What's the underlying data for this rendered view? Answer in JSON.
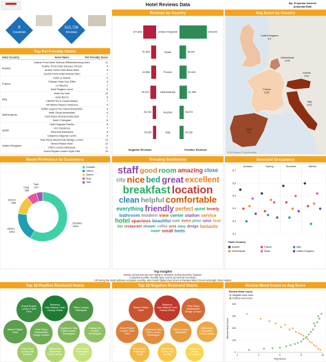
{
  "header": {
    "title": "Hotel Reviews Data",
    "authors": "By: Priyanka Ganesh",
    "authors_2": "Ankanita Rath"
  },
  "kpis": [
    {
      "value": "6",
      "label": "Countries"
    },
    {
      "value": "515,738",
      "label": "Reviews"
    }
  ],
  "pet_table": {
    "title": "Top Pet Friendly Hotels",
    "columns": [
      "Hotel Country",
      "Hotel Name",
      "Pet Friendly Score"
    ],
    "groups": [
      {
        "country": "Austria",
        "rows": [
          [
            "Austria Trend Hotel Schloss Wilhelminenberg Wien",
            11
          ],
          [
            "Austria Trend Hotel Savoyen Vienna",
            9
          ],
          [
            "Austria Trend Hotel Bosei Wien",
            8
          ],
          [
            "Austria Trend Hotel Ananas Wien",
            7
          ]
        ]
      },
      {
        "country": "France",
        "rows": [
          [
            "Hotel Le Marois",
            9
          ],
          [
            "Pullman Paris Tour Eiffel",
            8
          ],
          [
            "Le Meurice",
            7
          ],
          [
            "Hotel Regina Louvre",
            6
          ]
        ]
      },
      {
        "country": "Italy",
        "rows": [
          [
            "Hotel Da Vinci",
            10
          ],
          [
            "Hotel Berna",
            8
          ],
          [
            "UNAHOTELS Cusani Milano",
            7
          ],
          [
            "NH Milano Palazzo Moscova",
            6
          ]
        ]
      },
      {
        "country": "Netherlands",
        "rows": [
          [
            "Sofitel Legend The Grand Amsterdam",
            9
          ],
          [
            "Hotel Okura Amsterdam",
            8
          ],
          [
            "Park Plaza Victoria Amsterdam",
            7
          ],
          [
            "Hotel V Nesplein",
            6
          ]
        ]
      },
      {
        "country": "Spain",
        "rows": [
          [
            "Hotel Sagrada Familia",
            8
          ],
          [
            "H10 Casanova",
            7
          ],
          [
            "Hotel Arts Barcelona",
            6
          ],
          [
            "Catalonia Diagonal Centro",
            5
          ]
        ]
      },
      {
        "country": "United Kingdom",
        "rows": [
          [
            "Park Plaza Westminster Bridge London",
            14
          ],
          [
            "Strand Palace Hotel",
            12
          ],
          [
            "Hilton London Metropole",
            11
          ],
          [
            "Grand Royale London Hyde Park",
            10
          ]
        ]
      }
    ]
  },
  "insights": {
    "title": "Top Insights",
    "lines": [
      "Hotels across Europe are highly in demand during Summer Season.",
      "Customers prefer Double type rooms across all Countries.",
      "UK being the most actively occupied country, also holds higher Avg Score & Review Word Count amongst other Hotels."
    ]
  },
  "chart_data": [
    {
      "type": "bar",
      "title": "Reviews by Country",
      "categories": [
        "United Kingdom",
        "Spain",
        "France",
        "Netherlands",
        "Austria",
        "Italy"
      ],
      "xlim": [
        0,
        230000
      ],
      "series": [
        {
          "name": "Negative Reviews",
          "color": "#b5203d",
          "values": [
            107808,
            41609,
            40866,
            48232,
            28763,
            26080
          ],
          "value_labels": [
            "107,808",
            "41,609",
            "40,866",
            "48,232",
            "28,763",
            "26,080"
          ]
        },
        {
          "name": "Positive Reviews",
          "color": "#2e8b57",
          "values": [
            228423,
            54997,
            59440,
            61988,
            35873,
            34228
          ],
          "value_labels": [
            "228,423",
            "54,997",
            "59,440",
            "61,988",
            "35,873",
            "34,228"
          ]
        }
      ]
    },
    {
      "type": "map",
      "title": "Avg Score by Country",
      "categories": [
        "United Kingdom",
        "France",
        "Netherlands",
        "Austria",
        "Spain",
        "Italy"
      ],
      "values": [
        8.4,
        8.39,
        8.45,
        8.52,
        8.5,
        8.52
      ],
      "color_range": [
        "#f6d2b0",
        "#8b2e12"
      ],
      "attribution": "© 2023 Mapbox © OpenStreetMap"
    },
    {
      "type": "pie",
      "title": "Room Preference by Customers",
      "categories": [
        "Doubles",
        "Others",
        "Queen",
        "King",
        "Twin"
      ],
      "values": [
        3264,
        1044,
        688,
        366,
        227
      ],
      "colors": [
        "#3fd0a8",
        "#1e9fb0",
        "#f4c542",
        "#e8559a",
        "#9b59b6"
      ]
    },
    {
      "type": "wordcloud",
      "title": "Trending Sentiments",
      "words": [
        "staff",
        "good",
        "room",
        "amazing",
        "close",
        "city",
        "nice",
        "bed",
        "great",
        "excellent",
        "breakfast",
        "location",
        "clean",
        "helpful",
        "comfortable",
        "everything",
        "friendly",
        "perfect",
        "quiet",
        "lovely",
        "bathroom",
        "modern",
        "view",
        "center",
        "station",
        "service",
        "hotel",
        "spacious",
        "beautiful",
        "walk",
        "metro",
        "price",
        "value",
        "food",
        "bar",
        "restaurant",
        "shower",
        "coffee",
        "area",
        "easy",
        "design",
        "fantastic",
        "super",
        "small",
        "beds"
      ],
      "values": [
        9,
        6,
        6,
        5,
        4,
        4,
        8,
        7,
        8,
        7,
        10,
        10,
        7,
        6,
        8,
        4,
        7,
        4,
        3,
        3,
        3,
        3,
        3,
        3,
        3,
        3,
        5,
        3,
        3,
        2,
        2,
        2,
        2,
        2,
        2,
        2,
        2,
        2,
        2,
        2,
        2,
        3,
        2,
        3,
        3
      ],
      "colors": [
        "#8e44ad",
        "#e67e22",
        "#27ae60",
        "#c0392b",
        "#2980b9",
        "#7f8c8d",
        "#d35400",
        "#16a085"
      ]
    },
    {
      "type": "scatter",
      "title": "Seasonal Occupancy",
      "categories": [
        "Autumn",
        "Spring",
        "Summer",
        "Winter"
      ],
      "ylim": [
        8.2,
        8.7
      ],
      "yticks": [
        8.2,
        8.3,
        8.4,
        8.5,
        8.6,
        8.7
      ],
      "legend_title": "Hotel Country",
      "series": [
        {
          "name": "Austria",
          "color": "#1f3a5f",
          "values": [
            8.55,
            8.52,
            8.58,
            8.6
          ]
        },
        {
          "name": "France",
          "color": "#e8453c",
          "values": [
            8.4,
            8.38,
            8.45,
            8.42
          ]
        },
        {
          "name": "Italy",
          "color": "#2a9d8f",
          "values": [
            8.3,
            8.35,
            8.33,
            8.28
          ]
        },
        {
          "name": "Netherlands",
          "color": "#f28e2b",
          "values": [
            8.42,
            8.47,
            8.4,
            8.44
          ]
        },
        {
          "name": "Spain",
          "color": "#e15d9c",
          "values": [
            8.48,
            8.45,
            8.5,
            8.52
          ]
        },
        {
          "name": "United Kingdom",
          "color": "#7b3fa0",
          "values": [
            8.36,
            8.33,
            8.38,
            8.4
          ]
        }
      ]
    },
    {
      "type": "bubble",
      "title": "Top 10 Positive Reviewed Hotels",
      "categories": [
        "Britannia International Hotel Canary Wharf",
        "Grand Royale London Hyde Park",
        "Hilton London Metropole",
        "Strand Palace Hotel",
        "Park Plaza Westminster Bridge London",
        "Copthorne Tara Hotel London Kensington",
        "Holiday Inn London Kensington",
        "Park Plaza County Hall London",
        "Millennium Gloucester Hotel London",
        "Park Grand Paddington Court"
      ],
      "values": [
        4200,
        3900,
        3700,
        3500,
        3300,
        3100,
        2900,
        2700,
        2500,
        2300
      ],
      "color_range": [
        "#c5e17a",
        "#1e7b34"
      ]
    },
    {
      "type": "bubble",
      "title": "Top 10 Negative Reviewed Hotels",
      "categories": [
        "Britannia International Hotel Canary Wharf",
        "Strand Palace Hotel",
        "Park Plaza Westminster Bridge London",
        "Grand Royale London Hyde Park",
        "Copthorne Tara Hotel London Kensington",
        "Hilton London Metropole",
        "Millennium Gloucester Hotel London",
        "Park Grand Paddington Court",
        "Park Plaza County Hall London",
        "Holiday Inn London Kensington"
      ],
      "values": [
        4400,
        4000,
        3700,
        3400,
        3200,
        3000,
        2800,
        2600,
        2400,
        2200
      ],
      "color_range": [
        "#fcd34d",
        "#c0392b"
      ]
    },
    {
      "type": "scatter",
      "title": "Review Word Count vs Avg Score",
      "x_label": "Avg Score",
      "y_label": "Review Word Count",
      "legend_title": "Review Word Count",
      "xlim": [
        2,
        10
      ],
      "xticks": [
        2,
        4,
        6,
        8,
        10
      ],
      "ylim": [
        0,
        400
      ],
      "yticks": [
        0,
        100,
        200,
        300,
        400
      ],
      "series": [
        {
          "name": "Negative word count",
          "color": "#f28e2b",
          "x": [
            2.9,
            4.2,
            5.0,
            5.6,
            6.1,
            6.5,
            6.9,
            7.2,
            7.5,
            7.8,
            8.0,
            8.2,
            8.4,
            8.6,
            8.8,
            9.0,
            9.2,
            9.4,
            9.6,
            9.8
          ],
          "values": [
            320,
            280,
            260,
            240,
            210,
            230,
            190,
            200,
            170,
            160,
            150,
            140,
            120,
            110,
            90,
            80,
            60,
            50,
            30,
            20
          ]
        },
        {
          "name": "Positive word count",
          "color": "#59a14f",
          "x": [
            3.1,
            4.5,
            5.3,
            6.0,
            6.6,
            7.0,
            7.4,
            7.7,
            8.0,
            8.2,
            8.5,
            8.7,
            8.9,
            9.1,
            9.3,
            9.5,
            9.7,
            9.9,
            9.6,
            9.2
          ],
          "values": [
            20,
            30,
            35,
            40,
            50,
            60,
            70,
            80,
            90,
            110,
            130,
            150,
            170,
            190,
            220,
            250,
            280,
            320,
            300,
            240
          ]
        }
      ]
    }
  ]
}
